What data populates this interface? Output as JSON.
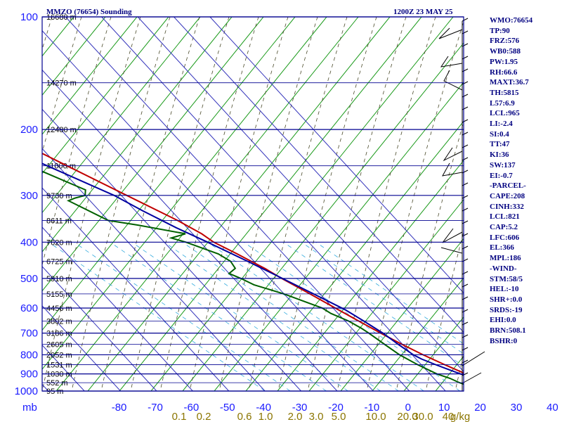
{
  "header": {
    "station": "MMZO (76654) Sounding",
    "time": "1200Z 23 MAY 25"
  },
  "indices": [
    "WMO:76654",
    "TP:90",
    "FRZ:576",
    "WB0:588",
    "PW:1.95",
    "RH:66.6",
    "MAXT:36.7",
    "TH:5815",
    "L57:6.9",
    "LCL:965",
    "LI:-2.4",
    "SI:0.4",
    "TT:47",
    "KI:36",
    "SW:137",
    "EI:-0.7",
    "-PARCEL-",
    "CAPE:208",
    "CINH:332",
    "LCL:821",
    "CAP:5.2",
    "LFC:606",
    "EL:366",
    "MPL:186",
    "-WIND-",
    "STM:58/5",
    "HEL:-10",
    "SHR+:0.0",
    "SRDS:-19",
    "EHI:0.0",
    "BRN:508.1",
    "BSHR:0"
  ],
  "chart_data": {
    "type": "line",
    "subtype": "skew-t log-p sounding",
    "y_axis_unit_label": "mb",
    "pressure_ticks": [
      100,
      200,
      300,
      400,
      500,
      600,
      700,
      800,
      900,
      1000
    ],
    "pressure_tick_labels": [
      "100",
      "200",
      "300",
      "400",
      "500",
      "600",
      "700",
      "800",
      "900",
      "1000"
    ],
    "temperature_ticks": [
      -80,
      -70,
      -60,
      -50,
      -40,
      -30,
      -20,
      -10,
      0,
      10,
      20,
      30,
      40
    ],
    "temperature_tick_labels": [
      "-80",
      "-70",
      "-60",
      "-50",
      "-40",
      "-30",
      "-20",
      "-10",
      "0",
      "10",
      "20",
      "30",
      "40"
    ],
    "ylim_mb": [
      100,
      1000
    ],
    "height_labels": [
      {
        "p": 100,
        "label": "16680 m"
      },
      {
        "p": 150,
        "label": "14270 m"
      },
      {
        "p": 200,
        "label": "12480 m"
      },
      {
        "p": 250,
        "label": "11000 m"
      },
      {
        "p": 300,
        "label": "9730 m"
      },
      {
        "p": 350,
        "label": "8611 m"
      },
      {
        "p": 400,
        "label": "7620 m"
      },
      {
        "p": 450,
        "label": "6725 m"
      },
      {
        "p": 500,
        "label": "5910 m"
      },
      {
        "p": 550,
        "label": "5155 m"
      },
      {
        "p": 600,
        "label": "4456 m"
      },
      {
        "p": 650,
        "label": "3802 m"
      },
      {
        "p": 700,
        "label": "3186 m"
      },
      {
        "p": 750,
        "label": "2605 m"
      },
      {
        "p": 800,
        "label": "2052 m"
      },
      {
        "p": 850,
        "label": "1531 m"
      },
      {
        "p": 900,
        "label": "1030 m"
      },
      {
        "p": 950,
        "label": "552 m"
      },
      {
        "p": 1000,
        "label": "95 m"
      }
    ],
    "mixing_ratio_labels": [
      "0.1",
      "0.2",
      "0.6",
      "1.0",
      "2.0",
      "3.0",
      "5.0",
      "10.0",
      "20.0",
      "30.0",
      "40",
      "g/kg"
    ],
    "series": [
      {
        "key": "temperature",
        "color": "#c00000",
        "points": [
          [
            997,
            30.5
          ],
          [
            985,
            29.0
          ],
          [
            950,
            24.0
          ],
          [
            925,
            22.0
          ],
          [
            900,
            20.0
          ],
          [
            850,
            16.5
          ],
          [
            800,
            13.0
          ],
          [
            750,
            9.8
          ],
          [
            700,
            6.8
          ],
          [
            650,
            3.8
          ],
          [
            600,
            0.6
          ],
          [
            550,
            -2.8
          ],
          [
            500,
            -6.7
          ],
          [
            470,
            -8.8
          ],
          [
            450,
            -10.8
          ],
          [
            430,
            -12.8
          ],
          [
            400,
            -16.3
          ],
          [
            380,
            -17.5
          ],
          [
            350,
            -20.8
          ],
          [
            300,
            -28.5
          ],
          [
            250,
            -37.5
          ],
          [
            200,
            -48.5
          ],
          [
            175,
            -55.0
          ],
          [
            150,
            -62.0
          ],
          [
            125,
            -70.0
          ],
          [
            110,
            -75.0
          ],
          [
            100,
            -76.5
          ]
        ]
      },
      {
        "key": "dewpoint",
        "color": "#006000",
        "points": [
          [
            997,
            21.0
          ],
          [
            985,
            19.0
          ],
          [
            950,
            16.0
          ],
          [
            925,
            14.5
          ],
          [
            900,
            12.0
          ],
          [
            850,
            9.0
          ],
          [
            800,
            6.5
          ],
          [
            750,
            5.0
          ],
          [
            700,
            3.5
          ],
          [
            680,
            2.7
          ],
          [
            650,
            1.0
          ],
          [
            620,
            -2.0
          ],
          [
            600,
            -3.0
          ],
          [
            550,
            -10.0
          ],
          [
            520,
            -16.0
          ],
          [
            500,
            -18.0
          ],
          [
            485,
            -20.0
          ],
          [
            470,
            -17.0
          ],
          [
            450,
            -16.5
          ],
          [
            430,
            -18.0
          ],
          [
            400,
            -24.0
          ],
          [
            390,
            -27.0
          ],
          [
            380,
            -22.0
          ],
          [
            360,
            -33.0
          ],
          [
            350,
            -40.0
          ],
          [
            310,
            -46.0
          ],
          [
            305,
            -43.5
          ],
          [
            300,
            -40.0
          ],
          [
            290,
            -38.5
          ],
          [
            250,
            -48.0
          ],
          [
            220,
            -52.0
          ],
          [
            200,
            -60.0
          ],
          [
            170,
            -72.0
          ],
          [
            150,
            -78.0
          ]
        ]
      },
      {
        "key": "parcel",
        "color": "#0000a0",
        "points": [
          [
            997,
            31.5
          ],
          [
            950,
            24.5
          ],
          [
            900,
            18.5
          ],
          [
            850,
            14.0
          ],
          [
            821,
            11.5
          ],
          [
            800,
            10.3
          ],
          [
            750,
            8.8
          ],
          [
            700,
            7.4
          ],
          [
            650,
            5.2
          ],
          [
            606,
            2.9
          ],
          [
            550,
            -1.8
          ],
          [
            500,
            -6.5
          ],
          [
            450,
            -11.8
          ],
          [
            400,
            -18.0
          ],
          [
            366,
            -23.0
          ],
          [
            330,
            -28.0
          ],
          [
            300,
            -32.0
          ],
          [
            250,
            -43.0
          ],
          [
            200,
            -56.0
          ],
          [
            150,
            -72.0
          ],
          [
            120,
            -82.0
          ]
        ]
      }
    ]
  }
}
